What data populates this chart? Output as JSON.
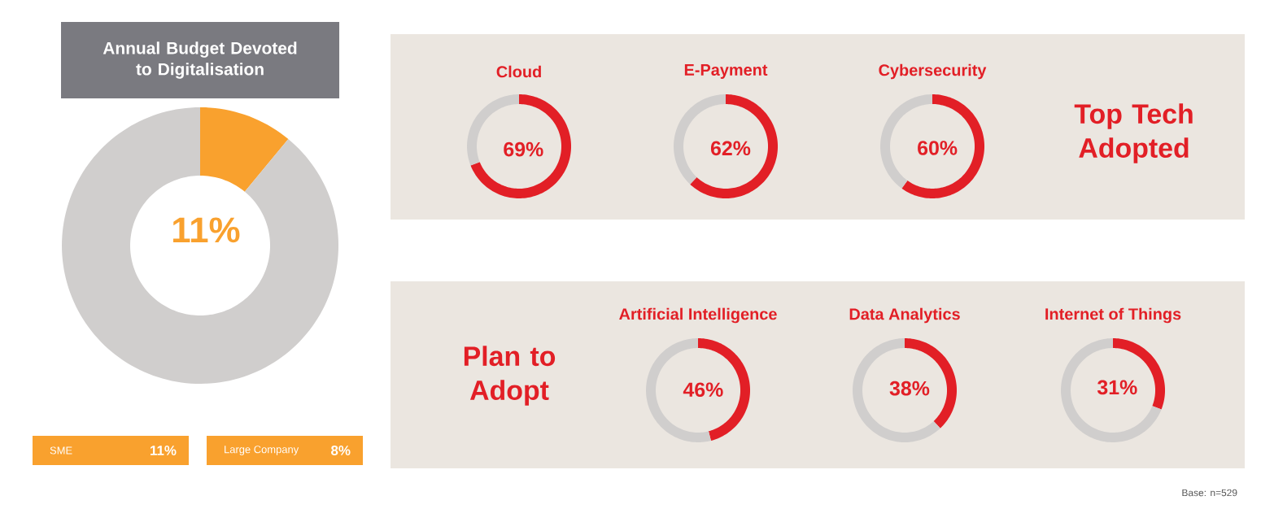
{
  "chart_data": [
    {
      "type": "donut",
      "title": "Annual Budget Devoted to Digitalisation",
      "categories": [
        null,
        null
      ],
      "values": [
        11,
        89
      ],
      "colors": [
        "#f9a12e",
        "#d0cecd"
      ],
      "value_labels": [
        "11%",
        null
      ]
    },
    {
      "type": "other",
      "annotations": [
        "SME",
        "11%",
        "Large Company",
        "8%"
      ]
    },
    {
      "type": "donut",
      "title": "Cloud",
      "categories": [
        null,
        null
      ],
      "values": [
        69,
        31
      ],
      "colors": [
        "#e21f26",
        "#d0cecd"
      ],
      "value_labels": [
        "69%",
        null
      ]
    },
    {
      "type": "donut",
      "title": "E-Payment",
      "categories": [
        null,
        null
      ],
      "values": [
        62,
        38
      ],
      "colors": [
        "#e21f26",
        "#d0cecd"
      ],
      "value_labels": [
        "62%",
        null
      ]
    },
    {
      "type": "donut",
      "title": "Cybersecurity",
      "categories": [
        null,
        null
      ],
      "values": [
        60,
        40
      ],
      "colors": [
        "#e21f26",
        "#d0cecd"
      ],
      "value_labels": [
        "60%",
        null
      ]
    },
    {
      "type": "other",
      "title": "Top Tech Adopted"
    },
    {
      "type": "other",
      "title": "Plan to Adopt"
    },
    {
      "type": "donut",
      "title": "Artificial Intelligence",
      "categories": [
        null,
        null
      ],
      "values": [
        46,
        54
      ],
      "colors": [
        "#e21f26",
        "#d0cecd"
      ],
      "value_labels": [
        "46%",
        null
      ]
    },
    {
      "type": "donut",
      "title": "Data Analytics",
      "categories": [
        null,
        null
      ],
      "values": [
        38,
        62
      ],
      "colors": [
        "#e21f26",
        "#d0cecd"
      ],
      "value_labels": [
        "38%",
        null
      ]
    },
    {
      "type": "donut",
      "title": "Internet of Things",
      "categories": [
        null,
        null
      ],
      "values": [
        31,
        69
      ],
      "colors": [
        "#e21f26",
        "#d0cecd"
      ],
      "value_labels": [
        "31%",
        null
      ]
    },
    {
      "type": "other",
      "annotations": [
        "Base: n=529"
      ]
    }
  ]
}
